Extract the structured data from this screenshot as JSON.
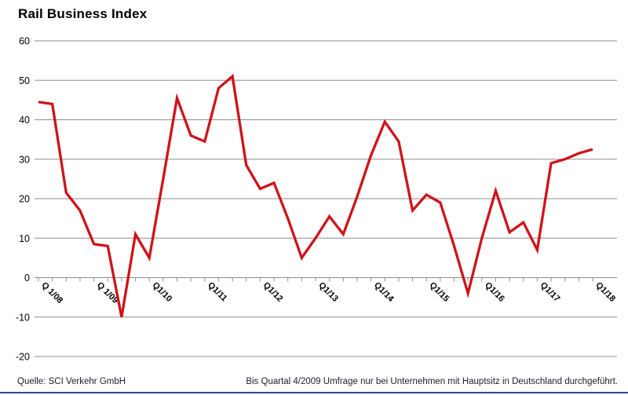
{
  "title": "Rail Business Index",
  "footer": {
    "source": "Quelle: SCI Verkehr GmbH",
    "note": "Bis Quartal 4/2009 Umfrage nur bei Unternehmen mit Hauptsitz in Deutschland durchgeführt."
  },
  "colors": {
    "line": "#d0121a",
    "grid": "#8f8f8f",
    "text": "#000000",
    "bottom_rule": "#2d4b8e"
  },
  "chart_data": {
    "type": "line",
    "title": "Rail Business Index",
    "categories": [
      "Q1/08",
      "Q2/08",
      "Q3/08",
      "Q4/08",
      "Q1/09",
      "Q2/09",
      "Q3/09",
      "Q4/09",
      "Q1/10",
      "Q2/10",
      "Q3/10",
      "Q4/10",
      "Q1/11",
      "Q2/11",
      "Q3/11",
      "Q4/11",
      "Q1/12",
      "Q2/12",
      "Q3/12",
      "Q4/12",
      "Q1/13",
      "Q2/13",
      "Q3/13",
      "Q4/13",
      "Q1/14",
      "Q2/14",
      "Q3/14",
      "Q4/14",
      "Q1/15",
      "Q2/15",
      "Q3/15",
      "Q4/15",
      "Q1/16",
      "Q2/16",
      "Q3/16",
      "Q4/16",
      "Q1/17",
      "Q2/17",
      "Q3/17",
      "Q4/17",
      "Q1/18"
    ],
    "values": [
      44.5,
      44,
      21.5,
      17,
      8.5,
      8,
      -10,
      11,
      5,
      25,
      45.5,
      36,
      34.5,
      48,
      51,
      28.5,
      22.5,
      24,
      15,
      5,
      10,
      15.5,
      11,
      20.5,
      31,
      39.5,
      34.5,
      17,
      21,
      19,
      8,
      -4,
      10,
      22,
      11.5,
      14,
      7,
      29,
      30,
      31.5,
      32.5
    ],
    "x_tick_labels": [
      "Q 1/08",
      "Q 1/09",
      "Q1/10",
      "Q1/11",
      "Q1/12",
      "Q1/13",
      "Q1/14",
      "Q1/15",
      "Q1/16",
      "Q1/17",
      "Q1/18"
    ],
    "x_tick_every": 4,
    "y_ticks": [
      60,
      50,
      40,
      30,
      20,
      10,
      0,
      -10,
      -20
    ],
    "ylim": [
      -20,
      60
    ],
    "xlabel": "",
    "ylabel": "",
    "grid": "horizontal",
    "legend": "none",
    "line_color": "#d0121a",
    "grid_color": "#8f8f8f"
  }
}
